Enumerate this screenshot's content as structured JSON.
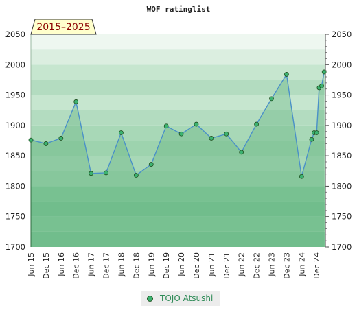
{
  "chart_data": {
    "type": "line",
    "title": "WOF ratinglist",
    "period_badge": "2015–2025",
    "ylim": [
      1700,
      2050
    ],
    "y_ticks": [
      "1700",
      "1750",
      "1800",
      "1850",
      "1900",
      "1950",
      "2000",
      "2050"
    ],
    "x_tick_labels": [
      "Jun 15",
      "Dec 15",
      "Jun 16",
      "Dec 16",
      "Jun 17",
      "Dec 17",
      "Jun 18",
      "Dec 18",
      "Jun 19",
      "Dec 19",
      "Jun 20",
      "Dec 20",
      "Jun 21",
      "Dec 21",
      "Jun 22",
      "Dec 22",
      "Jun 23",
      "Dec 23",
      "Jun 24",
      "Dec 24"
    ],
    "series": [
      {
        "name": "TOJO Atsushi",
        "color": "#4a90c8",
        "marker_color": "#3cb371",
        "points": [
          {
            "x": "2015-06",
            "y": 1876
          },
          {
            "x": "2015-12",
            "y": 1870
          },
          {
            "x": "2016-06",
            "y": 1879
          },
          {
            "x": "2016-12",
            "y": 1939
          },
          {
            "x": "2017-06",
            "y": 1821
          },
          {
            "x": "2017-12",
            "y": 1822
          },
          {
            "x": "2018-06",
            "y": 1888
          },
          {
            "x": "2018-12",
            "y": 1818
          },
          {
            "x": "2019-06",
            "y": 1836
          },
          {
            "x": "2019-12",
            "y": 1899
          },
          {
            "x": "2020-06",
            "y": 1886
          },
          {
            "x": "2020-12",
            "y": 1902
          },
          {
            "x": "2021-06",
            "y": 1879
          },
          {
            "x": "2021-12",
            "y": 1886
          },
          {
            "x": "2022-06",
            "y": 1856
          },
          {
            "x": "2022-12",
            "y": 1902
          },
          {
            "x": "2023-06",
            "y": 1944
          },
          {
            "x": "2023-12",
            "y": 1984
          },
          {
            "x": "2024-06",
            "y": 1816
          },
          {
            "x": "2024-10",
            "y": 1877
          },
          {
            "x": "2024-11",
            "y": 1888
          },
          {
            "x": "2024-12",
            "y": 1888
          },
          {
            "x": "2025-01",
            "y": 1962
          },
          {
            "x": "2025-02",
            "y": 1965
          },
          {
            "x": "2025-03",
            "y": 1988
          }
        ]
      }
    ],
    "legend": {
      "placement": "bottom",
      "entries": [
        "TOJO Atsushi"
      ]
    },
    "colors": {
      "band_dark": "#7cc495",
      "band_mid": "#b3dcc0",
      "band_light": "#dbeee0",
      "band_pale": "#eef7f0",
      "line": "#4a90c8",
      "fill": "#5fb37a"
    }
  }
}
